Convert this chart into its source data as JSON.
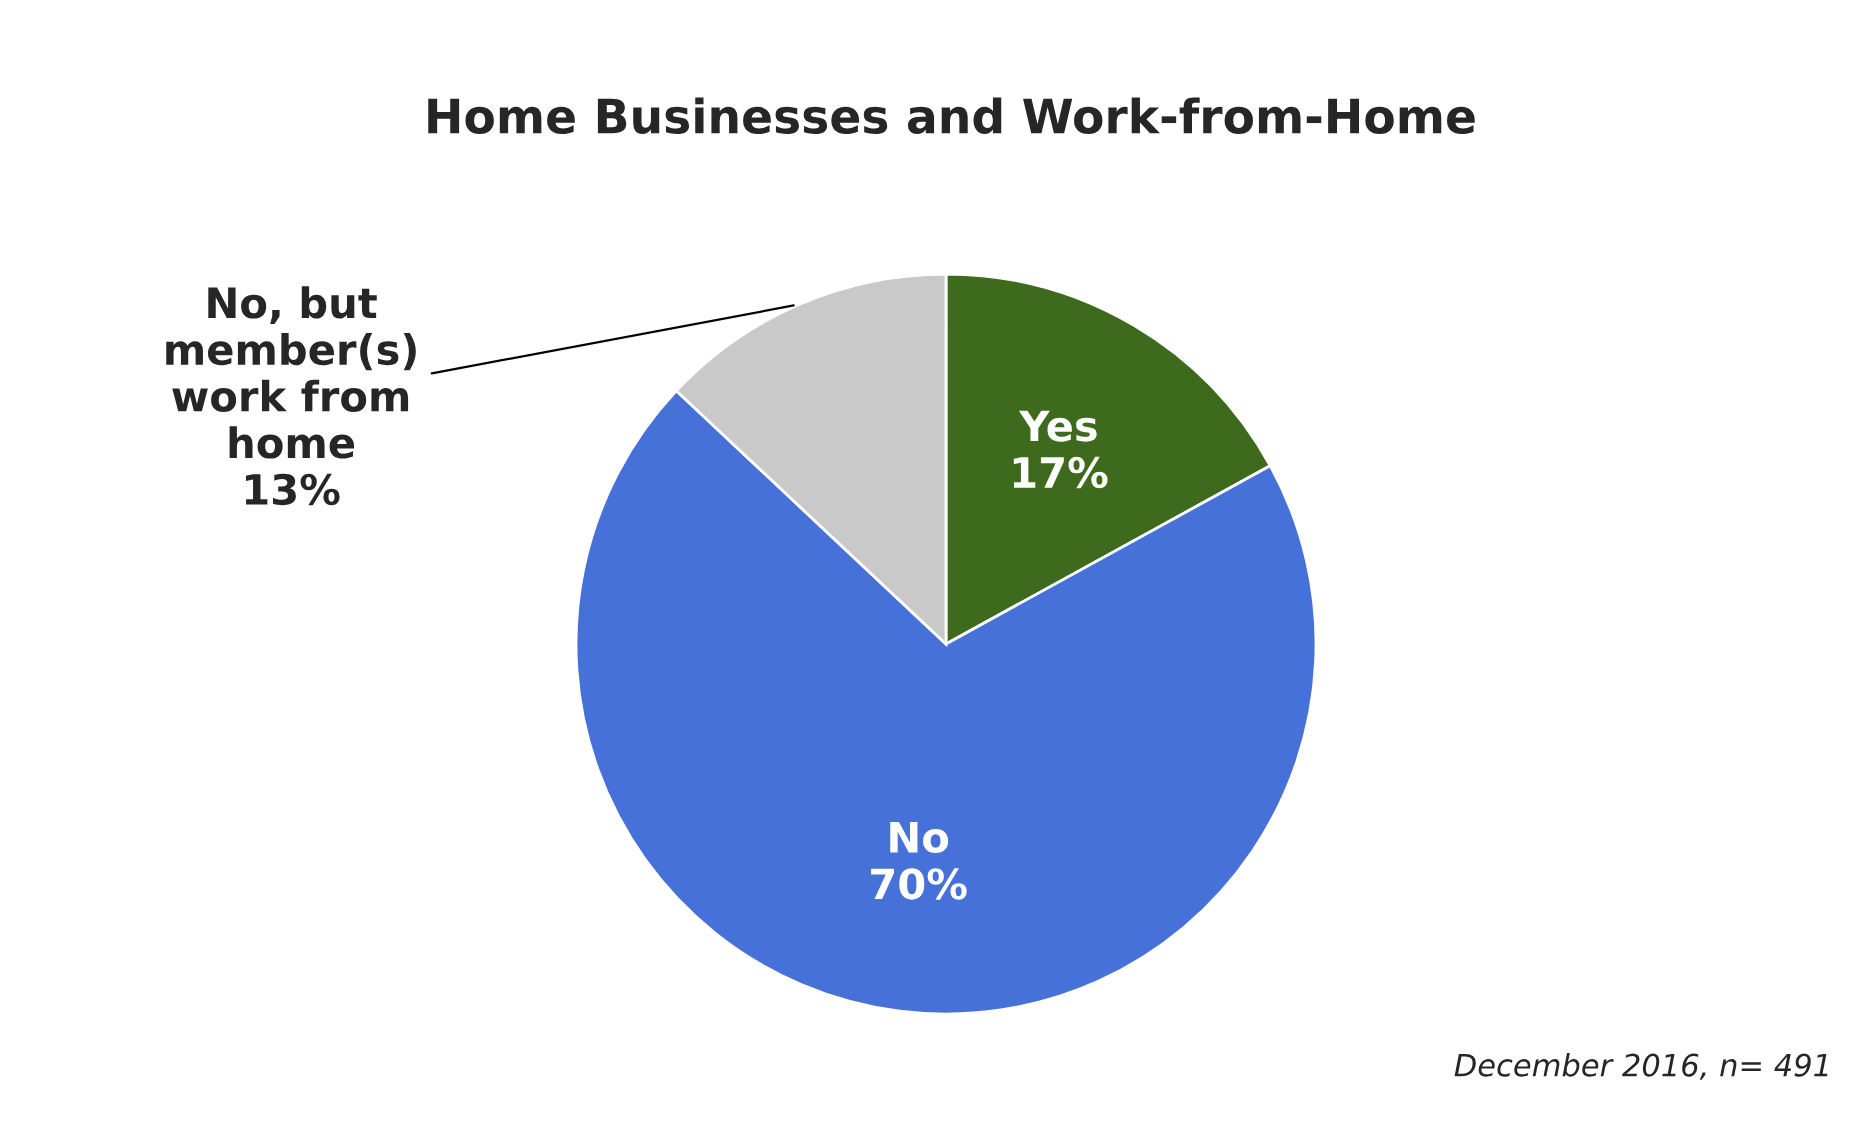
{
  "chart_data": {
    "type": "pie",
    "title": "Home Businesses and Work-from-Home",
    "categories": [
      "Yes",
      "No",
      "No, but\nmember(s)\nwork from\nhome"
    ],
    "values": [
      17,
      70,
      13
    ],
    "value_labels": [
      "17%",
      "70%",
      "13%"
    ],
    "colors": [
      "#3d6a1c",
      "#4671d9",
      "#c9c9c9"
    ],
    "legend": false,
    "annotations": [
      "December 2016, n= 491"
    ]
  }
}
